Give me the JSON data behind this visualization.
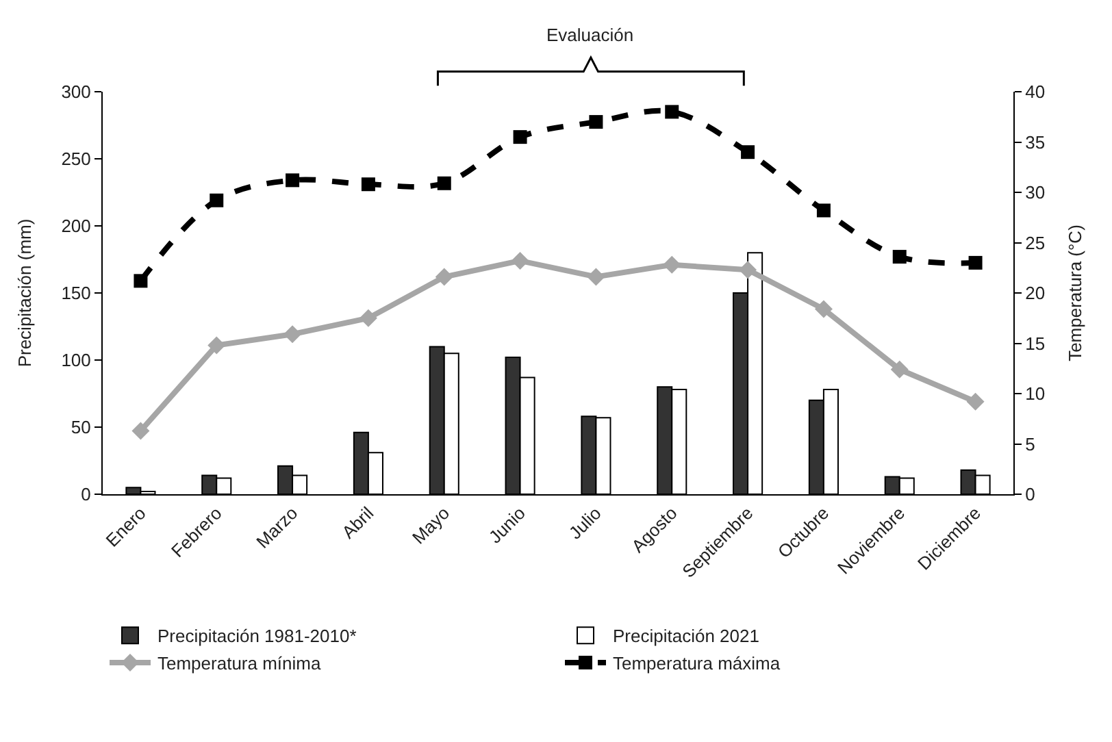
{
  "chart_data": {
    "type": "bar",
    "categories": [
      "Enero",
      "Febrero",
      "Marzo",
      "Abril",
      "Mayo",
      "Junio",
      "Julio",
      "Agosto",
      "Septiembre",
      "Octubre",
      "Noviembre",
      "Diciembre"
    ],
    "ylabel": "Precipitación (mm)",
    "y2label": "Temperatura (°C)",
    "ylim": [
      0,
      300
    ],
    "yticks": [
      0,
      50,
      100,
      150,
      200,
      250,
      300
    ],
    "y2lim": [
      0,
      40
    ],
    "y2ticks": [
      0,
      5,
      10,
      15,
      20,
      25,
      30,
      35,
      40
    ],
    "grid": false,
    "legend": "bottom",
    "annotations": [
      "Evaluación"
    ],
    "series": [
      {
        "name": "Precipitación 1981-2010*",
        "color": "#333333",
        "values": [
          5,
          14,
          21,
          46,
          110,
          102,
          58,
          80,
          150,
          70,
          13,
          18
        ]
      },
      {
        "name": "Precipitación 2021",
        "color": "#ffffff",
        "values": [
          2,
          12,
          14,
          31,
          105,
          87,
          57,
          78,
          180,
          78,
          12,
          14
        ]
      },
      {
        "name": "Temperatura mínima",
        "type": "line",
        "axis": "y2",
        "color": "#a6a6a6",
        "marker": "diamond",
        "line_style": "solid",
        "values": [
          6.3,
          14.8,
          15.9,
          17.5,
          21.6,
          23.2,
          21.6,
          22.8,
          22.3,
          18.4,
          12.4,
          9.2
        ]
      },
      {
        "name": "Temperatura máxima",
        "type": "line",
        "axis": "y2",
        "color": "#000000",
        "marker": "square",
        "line_style": "dashed",
        "values": [
          21.2,
          29.2,
          31.2,
          30.8,
          30.9,
          35.5,
          37.0,
          38.0,
          34.0,
          28.2,
          23.6,
          23.0
        ]
      }
    ]
  }
}
